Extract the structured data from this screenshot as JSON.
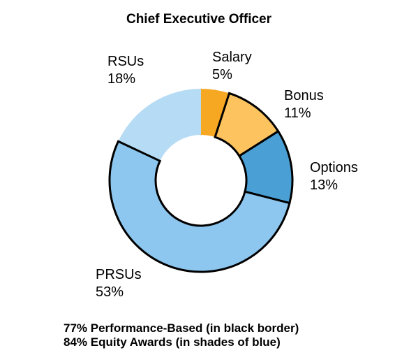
{
  "chart_data": {
    "type": "pie",
    "title": "Chief Executive Officer",
    "slices": [
      {
        "label": "Salary",
        "value": 5,
        "value_label": "5%",
        "color": "#F7A823",
        "performance_based": false
      },
      {
        "label": "Bonus",
        "value": 11,
        "value_label": "11%",
        "color": "#FCC35E",
        "performance_based": true
      },
      {
        "label": "Options",
        "value": 13,
        "value_label": "13%",
        "color": "#4A9FD4",
        "performance_based": true
      },
      {
        "label": "PRSUs",
        "value": 53,
        "value_label": "53%",
        "color": "#8DC6EE",
        "performance_based": true
      },
      {
        "label": "RSUs",
        "value": 18,
        "value_label": "18%",
        "color": "#B6DBF4",
        "performance_based": false
      }
    ],
    "donut": true,
    "start_angle": "12 o'clock, clockwise",
    "notes": [
      "77% Performance-Based (in black border)",
      "84% Equity Awards (in shades of blue)"
    ]
  }
}
